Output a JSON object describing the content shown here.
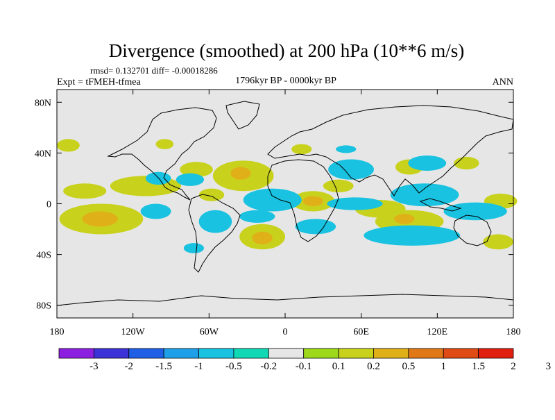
{
  "chart_data": {
    "type": "heatmap",
    "title": "Divergence (smoothed) at 200 hPa (10**6 m/s)",
    "stats_line": "rmsd= 0.132701 diff= -0.00018286",
    "experiment": "Expt = tFMEH-tfmea",
    "period": "1796kyr BP - 0000kyr BP",
    "season": "ANN",
    "x_ticks": [
      {
        "lon": -180,
        "label": "180"
      },
      {
        "lon": -120,
        "label": "120W"
      },
      {
        "lon": -60,
        "label": "60W"
      },
      {
        "lon": 0,
        "label": "0"
      },
      {
        "lon": 60,
        "label": "60E"
      },
      {
        "lon": 120,
        "label": "120E"
      },
      {
        "lon": 180,
        "label": "180"
      }
    ],
    "y_ticks": [
      {
        "lat": 80,
        "label": "80N"
      },
      {
        "lat": 40,
        "label": "40N"
      },
      {
        "lat": 0,
        "label": "0"
      },
      {
        "lat": -40,
        "label": "40S"
      },
      {
        "lat": -80,
        "label": "80S"
      }
    ],
    "xlim": [
      -180,
      180
    ],
    "ylim": [
      -90,
      90
    ],
    "colorbar": {
      "colors": [
        "#8c1fe0",
        "#3c32d8",
        "#1f5fe6",
        "#1f9fe8",
        "#18c2e0",
        "#10d8b4",
        "#e6e6e6",
        "#9ed81a",
        "#c8d21c",
        "#e0b018",
        "#e07818",
        "#e04a14",
        "#e01f10"
      ],
      "labels": [
        "-3",
        "-2",
        "-1.5",
        "-1",
        "-0.5",
        "-0.2",
        "-0.1",
        "0.1",
        "0.2",
        "0.5",
        "1",
        "1.5",
        "2",
        "3"
      ]
    },
    "regions": [
      {
        "level": 0.2,
        "lon": -171,
        "lat": 46,
        "rlon": 9,
        "rlat": 5
      },
      {
        "level": 0.2,
        "lon": -95,
        "lat": 47,
        "rlon": 7,
        "rlat": 4
      },
      {
        "level": 0.2,
        "lon": -110,
        "lat": 14,
        "rlon": 28,
        "rlat": 8
      },
      {
        "level": 0.2,
        "lon": -158,
        "lat": 10,
        "rlon": 17,
        "rlat": 6
      },
      {
        "level": 0.2,
        "lon": -145,
        "lat": -12,
        "rlon": 33,
        "rlat": 12
      },
      {
        "level": 0.5,
        "lon": -146,
        "lat": -12,
        "rlon": 14,
        "rlat": 6
      },
      {
        "level": 0.2,
        "lon": -33,
        "lat": 22,
        "rlon": 24,
        "rlat": 12
      },
      {
        "level": 0.5,
        "lon": -35,
        "lat": 24,
        "rlon": 8,
        "rlat": 5
      },
      {
        "level": 0.2,
        "lon": -70,
        "lat": 27,
        "rlon": 13,
        "rlat": 6
      },
      {
        "level": 0.2,
        "lon": -58,
        "lat": 7,
        "rlon": 10,
        "rlat": 5
      },
      {
        "level": 0.2,
        "lon": -18,
        "lat": -26,
        "rlon": 18,
        "rlat": 10
      },
      {
        "level": 0.5,
        "lon": -18,
        "lat": -27,
        "rlon": 8,
        "rlat": 5
      },
      {
        "level": 0.2,
        "lon": 22,
        "lat": 2,
        "rlon": 17,
        "rlat": 8
      },
      {
        "level": 0.5,
        "lon": 22,
        "lat": 2,
        "rlon": 8,
        "rlat": 4
      },
      {
        "level": 0.2,
        "lon": 13,
        "lat": 43,
        "rlon": 8,
        "rlat": 4
      },
      {
        "level": 0.2,
        "lon": 42,
        "lat": 14,
        "rlon": 12,
        "rlat": 5
      },
      {
        "level": 0.2,
        "lon": 98,
        "lat": 29,
        "rlon": 11,
        "rlat": 6
      },
      {
        "level": 0.2,
        "lon": 143,
        "lat": 32,
        "rlon": 10,
        "rlat": 5
      },
      {
        "level": 0.2,
        "lon": 170,
        "lat": 2,
        "rlon": 13,
        "rlat": 6
      },
      {
        "level": 0.2,
        "lon": 75,
        "lat": -4,
        "rlon": 20,
        "rlat": 7
      },
      {
        "level": 0.2,
        "lon": 98,
        "lat": -14,
        "rlon": 27,
        "rlat": 9
      },
      {
        "level": 0.5,
        "lon": 94,
        "lat": -12,
        "rlon": 8,
        "rlat": 4
      },
      {
        "level": 0.2,
        "lon": 168,
        "lat": -30,
        "rlon": 12,
        "rlat": 6
      },
      {
        "level": -0.2,
        "lon": -100,
        "lat": 20,
        "rlon": 10,
        "rlat": 5
      },
      {
        "level": -0.2,
        "lon": -75,
        "lat": 19,
        "rlon": 11,
        "rlat": 5
      },
      {
        "level": -0.2,
        "lon": -102,
        "lat": -6,
        "rlon": 12,
        "rlat": 6
      },
      {
        "level": -0.2,
        "lon": -55,
        "lat": -14,
        "rlon": 13,
        "rlat": 9
      },
      {
        "level": -0.2,
        "lon": -10,
        "lat": 3,
        "rlon": 23,
        "rlat": 9
      },
      {
        "level": -0.2,
        "lon": -22,
        "lat": -10,
        "rlon": 14,
        "rlat": 5
      },
      {
        "level": -0.2,
        "lon": 24,
        "lat": -18,
        "rlon": 16,
        "rlat": 6
      },
      {
        "level": -0.2,
        "lon": 52,
        "lat": 27,
        "rlon": 18,
        "rlat": 8
      },
      {
        "level": -0.2,
        "lon": 55,
        "lat": 0,
        "rlon": 22,
        "rlat": 5
      },
      {
        "level": -0.2,
        "lon": 110,
        "lat": 7,
        "rlon": 27,
        "rlat": 9
      },
      {
        "level": -0.2,
        "lon": 100,
        "lat": -25,
        "rlon": 38,
        "rlat": 8
      },
      {
        "level": -0.2,
        "lon": 150,
        "lat": -6,
        "rlon": 25,
        "rlat": 7
      },
      {
        "level": -0.2,
        "lon": 112,
        "lat": 32,
        "rlon": 15,
        "rlat": 6
      },
      {
        "level": -0.2,
        "lon": 48,
        "lat": 43,
        "rlon": 8,
        "rlat": 3
      },
      {
        "level": -0.2,
        "lon": -72,
        "lat": -35,
        "rlon": 8,
        "rlat": 4
      }
    ]
  }
}
